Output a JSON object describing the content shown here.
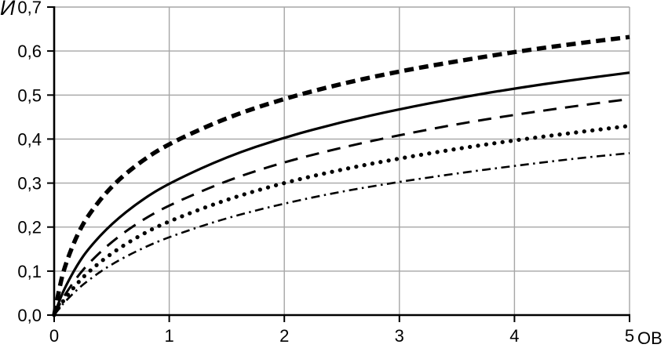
{
  "page": {
    "background": "#ffffff"
  },
  "chart_data": {
    "type": "line",
    "title": "",
    "ylabel": "И",
    "xlabel": "ОВ",
    "xlim": [
      0,
      5
    ],
    "ylim": [
      0,
      0.7
    ],
    "grid": true,
    "legend": "none",
    "colors": {
      "curve": "#000000",
      "grid": "#a6a6a6",
      "axis": "#000000",
      "text": "#000000"
    },
    "x_tick_values": [
      0,
      1,
      2,
      3,
      4,
      5
    ],
    "x_tick_labels": [
      "0",
      "1",
      "2",
      "3",
      "4",
      "5"
    ],
    "y_tick_values": [
      0,
      0.1,
      0.2,
      0.3,
      0.4,
      0.5,
      0.6,
      0.7
    ],
    "y_tick_labels": [
      "0,0",
      "0,1",
      "0,2",
      "0,3",
      "0,4",
      "0,5",
      "0,6",
      "0,7"
    ],
    "x": [
      0,
      0.05,
      0.1,
      0.2,
      0.3,
      0.5,
      0.75,
      1,
      1.5,
      2,
      2.5,
      3,
      3.5,
      4,
      4.5,
      5
    ],
    "series": [
      {
        "name": "curve-bold-dashed",
        "line_style": "bold-dashed",
        "values": [
          0,
          0.069,
          0.117,
          0.183,
          0.229,
          0.294,
          0.349,
          0.39,
          0.449,
          0.492,
          0.526,
          0.554,
          0.577,
          0.598,
          0.616,
          0.632
        ]
      },
      {
        "name": "curve-solid",
        "line_style": "solid",
        "values": [
          0,
          0.036,
          0.066,
          0.114,
          0.152,
          0.208,
          0.26,
          0.3,
          0.36,
          0.404,
          0.439,
          0.468,
          0.493,
          0.515,
          0.534,
          0.551
        ]
      },
      {
        "name": "curve-long-dash",
        "line_style": "long-dash",
        "values": [
          0,
          0.026,
          0.049,
          0.087,
          0.118,
          0.167,
          0.214,
          0.25,
          0.306,
          0.348,
          0.381,
          0.409,
          0.434,
          0.455,
          0.474,
          0.491
        ]
      },
      {
        "name": "curve-dotted",
        "line_style": "dotted",
        "values": [
          0,
          0.021,
          0.04,
          0.072,
          0.099,
          0.141,
          0.182,
          0.214,
          0.263,
          0.301,
          0.331,
          0.356,
          0.378,
          0.397,
          0.414,
          0.43
        ]
      },
      {
        "name": "curve-dash-dot",
        "line_style": "dash-dot",
        "values": [
          0,
          0.017,
          0.032,
          0.058,
          0.08,
          0.116,
          0.15,
          0.178,
          0.221,
          0.254,
          0.281,
          0.303,
          0.322,
          0.339,
          0.355,
          0.368
        ]
      }
    ]
  }
}
